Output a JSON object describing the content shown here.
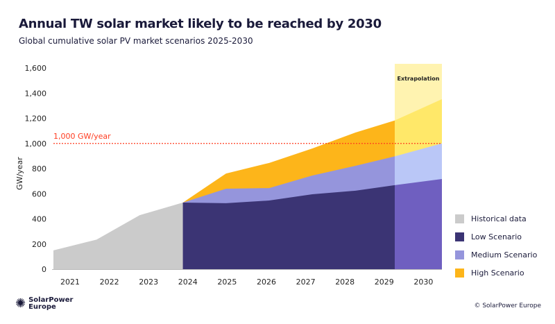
{
  "title": "Annual TW solar market likely to be reached by 2030",
  "subtitle": "Global cumulative solar PV market scenarios 2025-2030",
  "footer": {
    "logo_line1": "SolarPower",
    "logo_line2": "Europe",
    "copyright": "© SolarPower Europe"
  },
  "chart_data": {
    "type": "area",
    "ylabel": "GW/year",
    "ylim": [
      0,
      1600
    ],
    "yticks": [
      "0",
      "200",
      "400",
      "600",
      "800",
      "1,000",
      "1,200",
      "1,400",
      "1,600"
    ],
    "categories": [
      "2021",
      "2022",
      "2023",
      "2024",
      "2025",
      "2026",
      "2027",
      "2028",
      "2029",
      "2030"
    ],
    "reference_line": {
      "value": 1000,
      "label": "1,000 GW/year",
      "color": "#ff3b1f"
    },
    "extrapolation_label": "Extrapolation",
    "series": [
      {
        "name": "Historical data",
        "color": "#cbcbcb",
        "values": [
          150,
          235,
          430,
          530,
          null,
          null,
          null,
          null,
          null,
          null
        ]
      },
      {
        "name": "Low Scenario",
        "color": "#3b3474",
        "extrap_color": "#6f5fc0",
        "values": [
          null,
          null,
          null,
          530,
          525,
          546,
          596,
          624,
          673,
          717
        ]
      },
      {
        "name": "Medium Scenario",
        "color": "#9595dc",
        "extrap_color": "#bac7f7",
        "values": [
          null,
          null,
          null,
          530,
          640,
          645,
          745,
          822,
          905,
          1000
        ]
      },
      {
        "name": "High Scenario",
        "color": "#fdb51a",
        "extrap_color": "#ffe869",
        "values": [
          null,
          null,
          null,
          530,
          761,
          845,
          960,
          1087,
          1192,
          1352
        ]
      }
    ],
    "extrapolation_band_color": "#fff3b0",
    "legend_position": "right"
  }
}
